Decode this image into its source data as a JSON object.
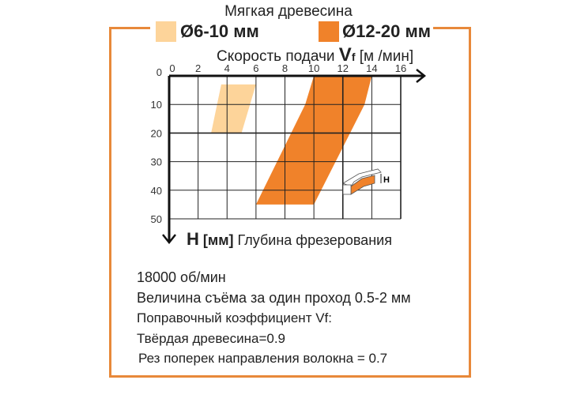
{
  "chart_data": {
    "type": "area",
    "title": "Мягкая древесина",
    "xlabel": {
      "prefix": "Скорость подачи",
      "symbol": "V",
      "sub": "f",
      "unit": "[м /мин]"
    },
    "ylabel": {
      "symbol": "H",
      "unit": "[мм]",
      "text": "Глубина фрезерования"
    },
    "xlim": [
      0,
      16
    ],
    "ylim": [
      0,
      50
    ],
    "y_inverted": true,
    "grid": true,
    "x_ticks": [
      "0",
      "2",
      "4",
      "6",
      "8",
      "10",
      "12",
      "14",
      "16"
    ],
    "y_ticks": [
      "0",
      "10",
      "20",
      "30",
      "40",
      "50"
    ],
    "series": [
      {
        "name": "Ø6-10 мм",
        "color": "#fdd49a",
        "polygon": [
          [
            3.6,
            3
          ],
          [
            6,
            3
          ],
          [
            5,
            20
          ],
          [
            2.9,
            20
          ]
        ]
      },
      {
        "name": "Ø12-20 мм",
        "color": "#f0822a",
        "polygon": [
          [
            10,
            0
          ],
          [
            14,
            0
          ],
          [
            13.5,
            10
          ],
          [
            10,
            45
          ],
          [
            6,
            45
          ],
          [
            9.4,
            10
          ]
        ]
      }
    ],
    "legend": "top",
    "inset_label": "H"
  },
  "info": {
    "line1": "18000 об/мин",
    "line2": "Величина съёма за один проход 0.5-2 мм",
    "line3": "Поправочный коэффициент Vf:",
    "line4": "Твёрдая древесина=0.9",
    "line5": "Рез поперек направления волокна = 0.7"
  },
  "colors": {
    "frame": "#e8893a"
  }
}
